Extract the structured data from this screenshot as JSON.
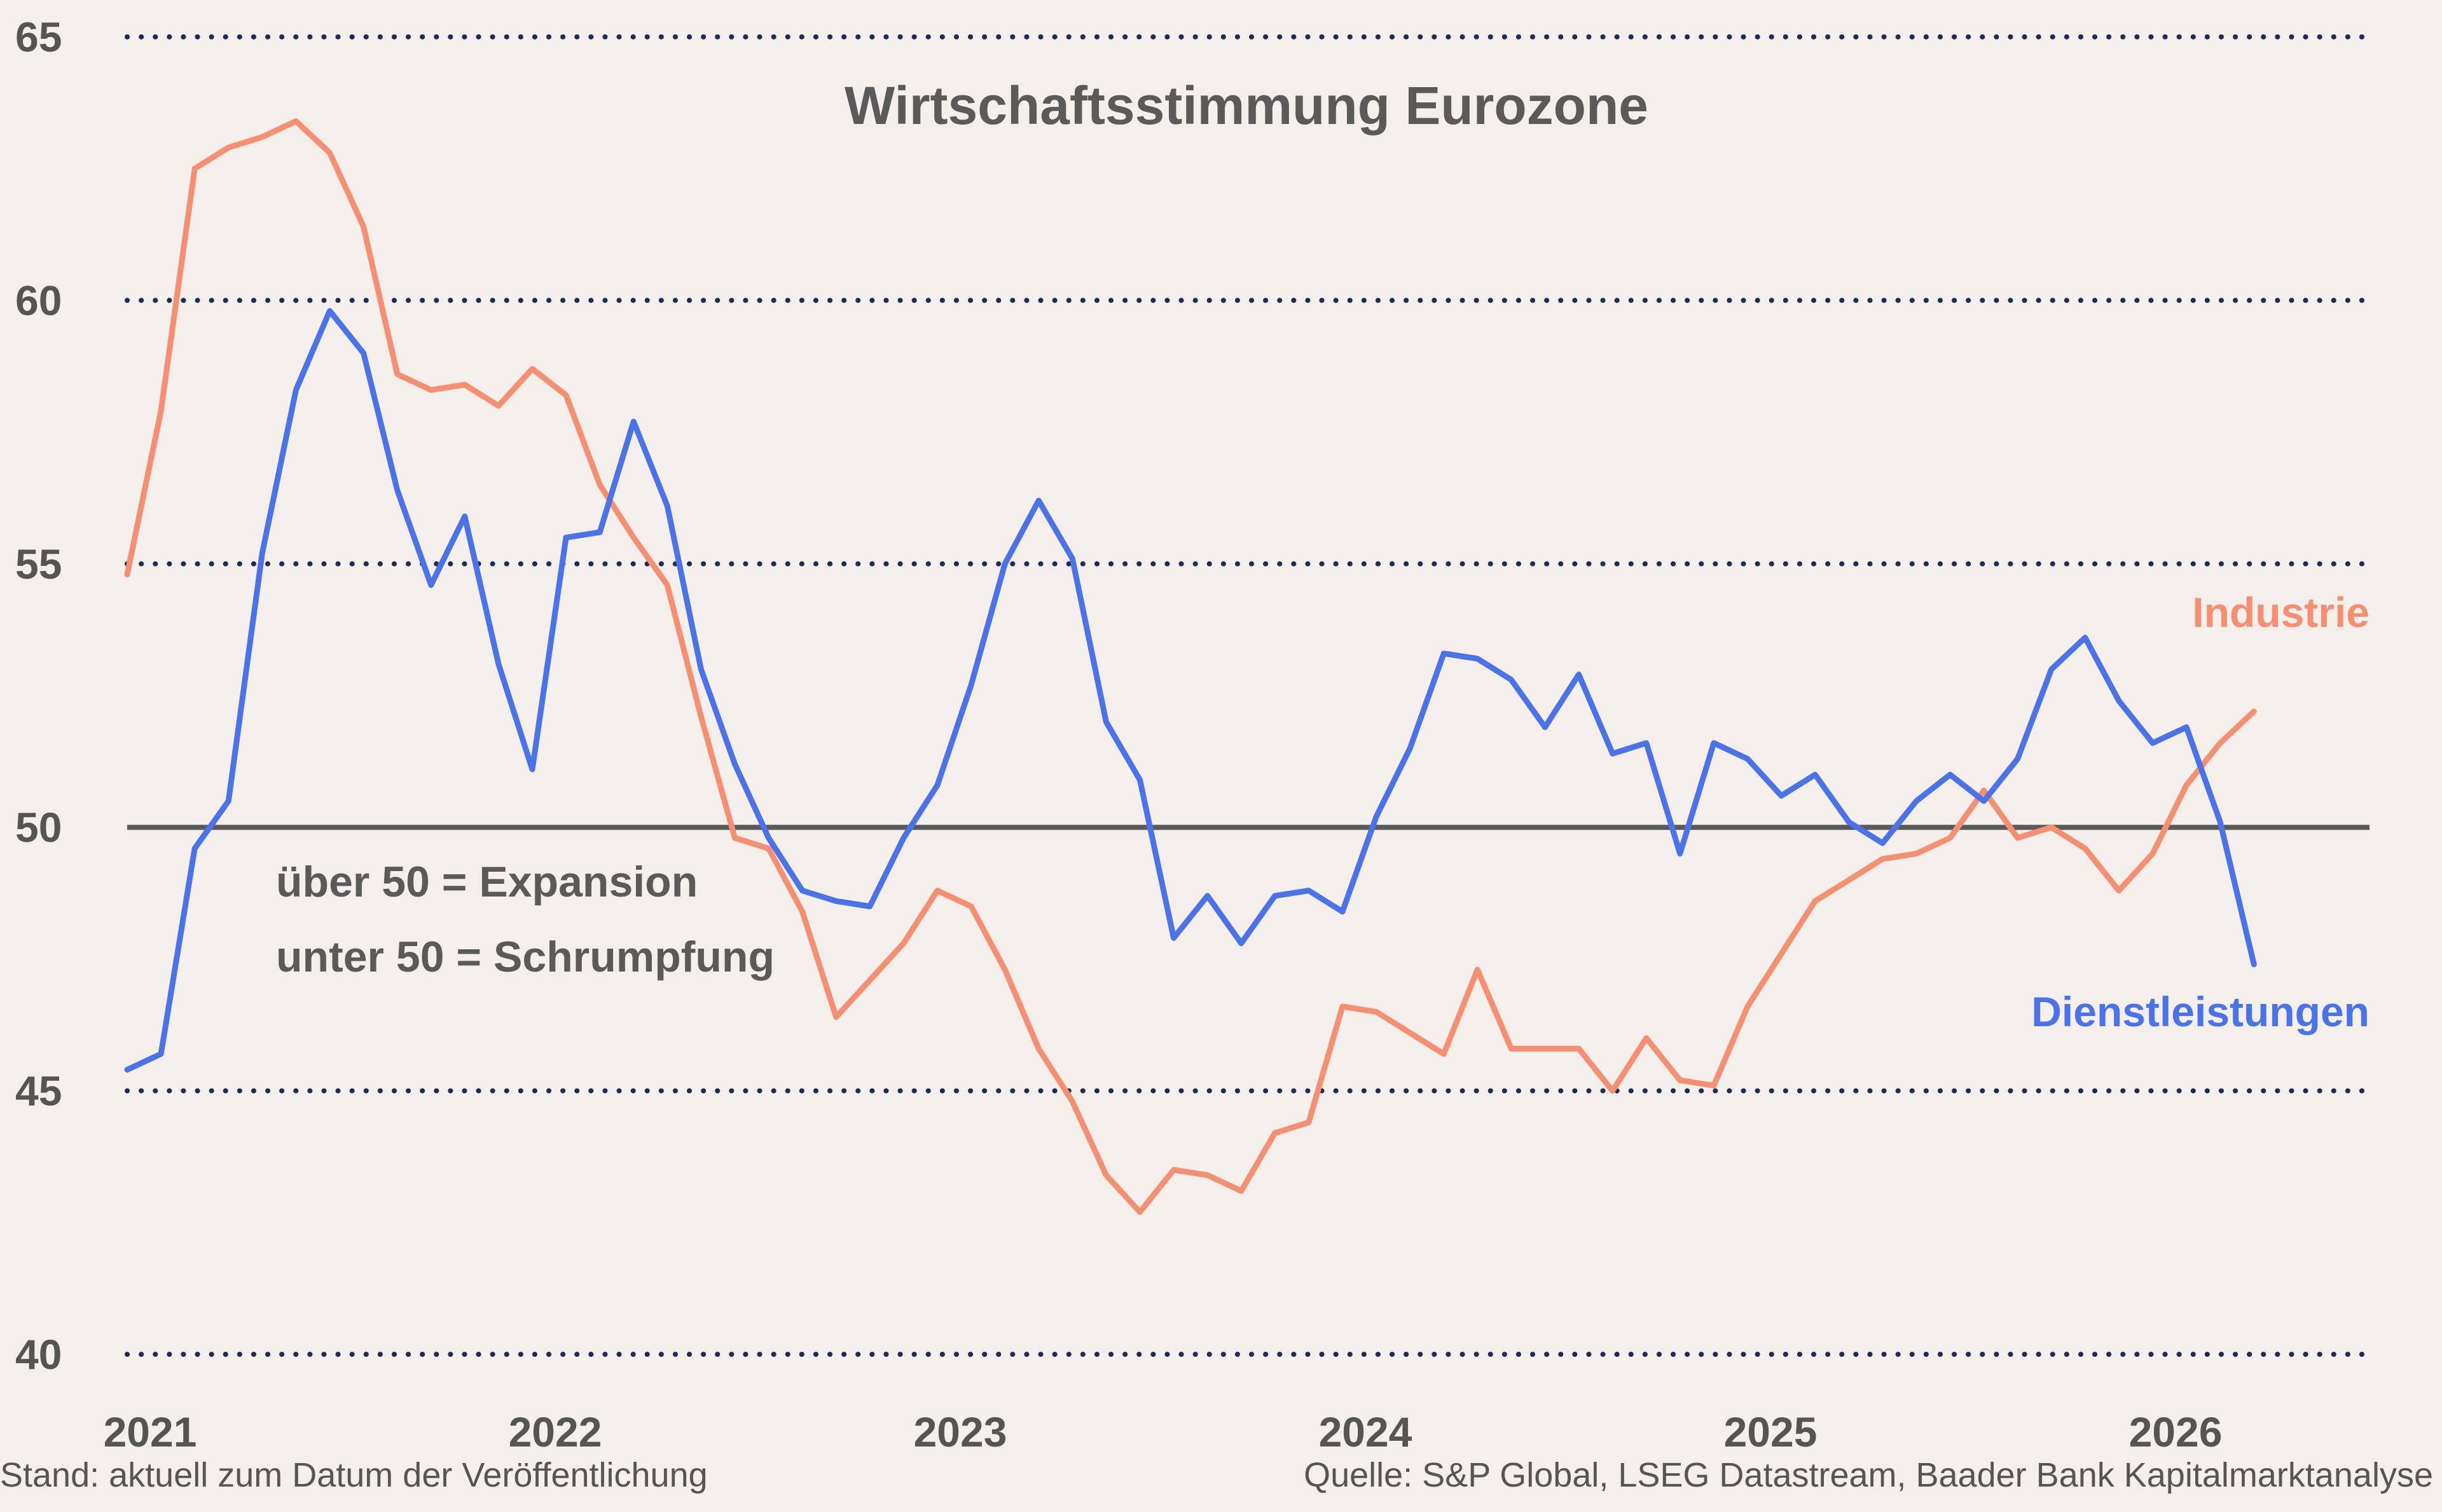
{
  "chart_data": {
    "type": "line",
    "title": "Wirtschaftsstimmung Eurozone",
    "xlabel": "",
    "ylabel": "",
    "ylim": [
      40,
      65
    ],
    "yticks": [
      40,
      45,
      50,
      55,
      60,
      65
    ],
    "xticks": [
      "2021",
      "2022",
      "2023",
      "2024",
      "2025",
      "2026"
    ],
    "grid": true,
    "reference_line": 50,
    "annotations": [
      "über 50 = Expansion",
      "unter 50 = Schrumpfung"
    ],
    "series": [
      {
        "name": "Industrie",
        "color": "#f58f72",
        "x": [
          "2021-01",
          "2021-02",
          "2021-03",
          "2021-04",
          "2021-05",
          "2021-06",
          "2021-07",
          "2021-08",
          "2021-09",
          "2021-10",
          "2021-11",
          "2021-12",
          "2022-01",
          "2022-02",
          "2022-03",
          "2022-04",
          "2022-05",
          "2022-06",
          "2022-07",
          "2022-08",
          "2022-09",
          "2022-10",
          "2022-11",
          "2022-12",
          "2023-01",
          "2023-02",
          "2023-03",
          "2023-04",
          "2023-05",
          "2023-06",
          "2023-07",
          "2023-08",
          "2023-09",
          "2023-10",
          "2023-11",
          "2023-12",
          "2024-01",
          "2024-02",
          "2024-03",
          "2024-04",
          "2024-05",
          "2024-06",
          "2024-07",
          "2024-08",
          "2024-09",
          "2024-10",
          "2024-11",
          "2024-12",
          "2025-01",
          "2025-02",
          "2025-03",
          "2025-04",
          "2025-05",
          "2025-06",
          "2025-07",
          "2025-08",
          "2025-09",
          "2025-10",
          "2025-11",
          "2025-12",
          "2026-01",
          "2026-02",
          "2026-03",
          "2026-04"
        ],
        "values": [
          54.8,
          57.9,
          62.5,
          62.9,
          63.1,
          63.4,
          62.8,
          61.4,
          58.6,
          58.3,
          58.4,
          58.0,
          58.7,
          58.2,
          56.5,
          55.5,
          54.6,
          52.1,
          49.8,
          49.6,
          48.4,
          46.4,
          47.1,
          47.8,
          48.8,
          48.5,
          47.3,
          45.8,
          44.8,
          43.4,
          42.7,
          43.5,
          43.4,
          43.1,
          44.2,
          44.4,
          46.6,
          46.5,
          46.1,
          45.7,
          47.3,
          45.8,
          45.8,
          45.8,
          45.0,
          46.0,
          45.2,
          45.1,
          46.6,
          47.6,
          48.6,
          49.0,
          49.4,
          49.5,
          49.8,
          50.7,
          49.8,
          50.0,
          49.6,
          48.8,
          49.5,
          50.8,
          51.6,
          52.2
        ]
      },
      {
        "name": "Dienstleistungen",
        "color": "#4a73ea",
        "x": [
          "2021-01",
          "2021-02",
          "2021-03",
          "2021-04",
          "2021-05",
          "2021-06",
          "2021-07",
          "2021-08",
          "2021-09",
          "2021-10",
          "2021-11",
          "2021-12",
          "2022-01",
          "2022-02",
          "2022-03",
          "2022-04",
          "2022-05",
          "2022-06",
          "2022-07",
          "2022-08",
          "2022-09",
          "2022-10",
          "2022-11",
          "2022-12",
          "2023-01",
          "2023-02",
          "2023-03",
          "2023-04",
          "2023-05",
          "2023-06",
          "2023-07",
          "2023-08",
          "2023-09",
          "2023-10",
          "2023-11",
          "2023-12",
          "2024-01",
          "2024-02",
          "2024-03",
          "2024-04",
          "2024-05",
          "2024-06",
          "2024-07",
          "2024-08",
          "2024-09",
          "2024-10",
          "2024-11",
          "2024-12",
          "2025-01",
          "2025-02",
          "2025-03",
          "2025-04",
          "2025-05",
          "2025-06",
          "2025-07",
          "2025-08",
          "2025-09",
          "2025-10",
          "2025-11",
          "2025-12",
          "2026-01",
          "2026-02",
          "2026-03",
          "2026-04"
        ],
        "values": [
          45.4,
          45.7,
          49.6,
          50.5,
          55.2,
          58.3,
          59.8,
          59.0,
          56.4,
          54.6,
          55.9,
          53.1,
          51.1,
          55.5,
          55.6,
          57.7,
          56.1,
          53.0,
          51.2,
          49.8,
          48.8,
          48.6,
          48.5,
          49.8,
          50.8,
          52.7,
          55.0,
          56.2,
          55.1,
          52.0,
          50.9,
          47.9,
          48.7,
          47.8,
          48.7,
          48.8,
          48.4,
          50.2,
          51.5,
          53.3,
          53.2,
          52.8,
          51.9,
          52.9,
          51.4,
          51.6,
          49.5,
          51.6,
          51.3,
          50.6,
          51.0,
          50.1,
          49.7,
          50.5,
          51.0,
          50.5,
          51.3,
          53.0,
          53.6,
          52.4,
          51.6,
          51.9,
          50.1,
          47.4
        ]
      }
    ]
  },
  "footer": {
    "left": "Stand: aktuell zum Datum der Veröffentlichung",
    "right": "Quelle: S&P Global, LSEG Datastream, Baader Bank Kapitalmarktanalyse"
  }
}
